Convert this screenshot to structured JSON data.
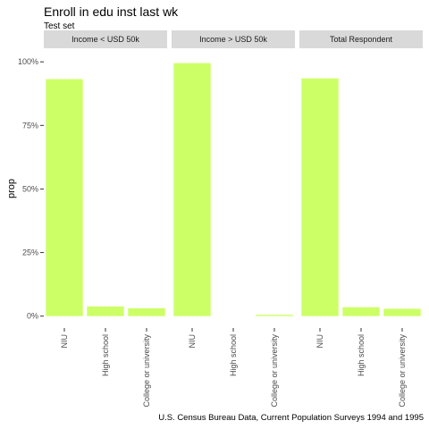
{
  "chart_data": {
    "type": "bar",
    "title": "Enroll in edu inst last wk",
    "subtitle": "Test set",
    "caption": "U.S. Census Bureau Data, Current Population Surveys 1994 and 1995",
    "xlabel": "",
    "ylabel": "prop",
    "ylim": [
      0,
      1
    ],
    "yticks": [
      0,
      0.25,
      0.5,
      0.75,
      1
    ],
    "ytick_labels": [
      "0%",
      "25%",
      "50%",
      "75%",
      "100%"
    ],
    "categories": [
      "NIU",
      "High school",
      "College or university"
    ],
    "bar_color": "#ccff66",
    "panel_strip_color": "#d9d9d9",
    "grid": false,
    "facets": [
      {
        "label": "Income < USD 50k",
        "values": [
          0.932,
          0.038,
          0.031
        ]
      },
      {
        "label": "Income > USD 50k",
        "values": [
          0.995,
          0.0,
          0.005
        ]
      },
      {
        "label": "Total Respondent",
        "values": [
          0.935,
          0.035,
          0.029
        ]
      }
    ]
  }
}
